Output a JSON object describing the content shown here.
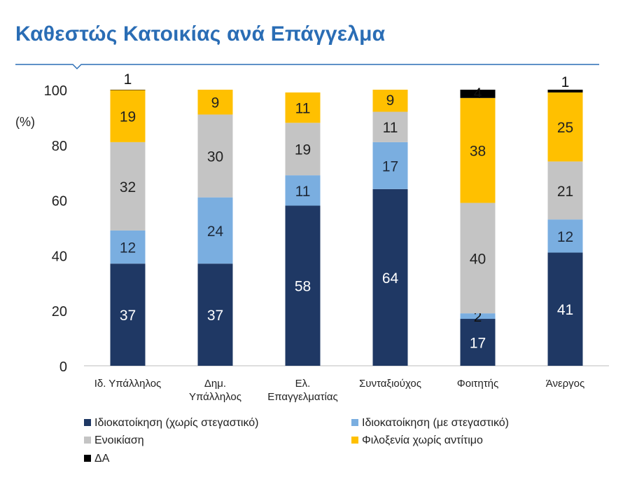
{
  "header": {
    "title": "Καθεστώς Κατοικίας ανά Επάγγελμα"
  },
  "chart_data": {
    "type": "bar",
    "stacked": true,
    "title": "Καθεστώς Κατοικίας ανά Επάγγελμα",
    "ylabel": "(%)",
    "ylim": [
      0,
      100
    ],
    "yticks": [
      "0",
      "20",
      "40",
      "60",
      "80",
      "100"
    ],
    "categories": [
      [
        "Ιδ. Υπάλληλος"
      ],
      [
        "Δημ.",
        "Υπάλληλος"
      ],
      [
        "Ελ.",
        "Επαγγελματίας"
      ],
      [
        "Συνταξιούχος"
      ],
      [
        "Φοιτητής"
      ],
      [
        "Άνεργος"
      ]
    ],
    "series": [
      {
        "name": "Ιδιοκατοίκηση (χωρίς στεγαστικό)",
        "color": "#1f3864",
        "label_color": "#ffffff",
        "values": [
          37,
          37,
          58,
          64,
          17,
          41
        ],
        "labels": [
          "37",
          "37",
          "58",
          "64",
          "17",
          "41"
        ]
      },
      {
        "name": "Ιδιοκατοίκηση (με στεγαστικό)",
        "color": "#7aaee0",
        "label_color": "#1f2a3a",
        "values": [
          12,
          24,
          11,
          17,
          2,
          12
        ],
        "labels": [
          "12",
          "24",
          "11",
          "17",
          "2",
          "12"
        ]
      },
      {
        "name": "Ενοικίαση",
        "color": "#c4c4c4",
        "label_color": "#222222",
        "values": [
          32,
          30,
          19,
          11,
          40,
          21
        ],
        "labels": [
          "32",
          "30",
          "19",
          "11",
          "40",
          "21"
        ]
      },
      {
        "name": "Φιλοξενία χωρίς αντίτιμο",
        "color": "#ffc000",
        "label_color": "#222222",
        "values": [
          19,
          9,
          11,
          9,
          38,
          25
        ],
        "labels": [
          "19",
          "9",
          "11",
          "9",
          "38",
          "25"
        ]
      },
      {
        "name": "ΔΑ",
        "color": "#000000",
        "label_color": "#111111",
        "values": [
          1,
          0,
          0,
          0,
          4,
          1
        ],
        "labels": [
          "1",
          "",
          "",
          "",
          "4",
          "1"
        ]
      }
    ],
    "legend_position": "bottom"
  }
}
